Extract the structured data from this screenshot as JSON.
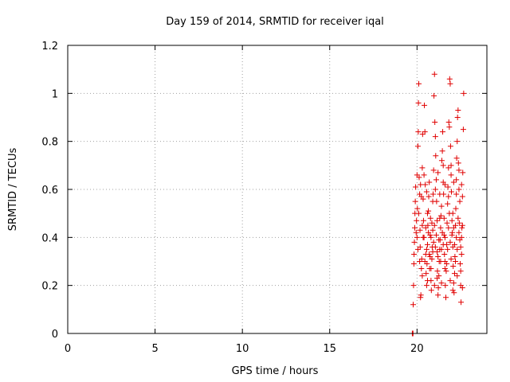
{
  "chart_data": {
    "type": "scatter",
    "title": "Day 159 of 2014, SRMTID for receiver iqal",
    "xlabel": "GPS time / hours",
    "ylabel": "SRMTID / TECUs",
    "xlim": [
      0,
      24
    ],
    "ylim": [
      0,
      1.2
    ],
    "xticks": [
      0,
      5,
      10,
      15,
      20
    ],
    "yticks": [
      0,
      0.2,
      0.4,
      0.6,
      0.8,
      1,
      1.2
    ],
    "xtick_labels": [
      "0",
      "5",
      "10",
      "15",
      "20"
    ],
    "ytick_labels": [
      "0",
      "0.2",
      "0.4",
      "0.6",
      "0.8",
      "1",
      "1.2"
    ],
    "grid": true,
    "marker": "+",
    "color": "#e00000",
    "series": [
      {
        "name": "SRMTID",
        "points": [
          [
            19.73,
            0.0
          ],
          [
            19.75,
            0.0
          ],
          [
            19.77,
            0.0
          ],
          [
            19.78,
            0.12
          ],
          [
            19.8,
            0.2
          ],
          [
            19.82,
            0.29
          ],
          [
            19.83,
            0.33
          ],
          [
            19.85,
            0.38
          ],
          [
            19.87,
            0.44
          ],
          [
            19.88,
            0.5
          ],
          [
            19.9,
            0.55
          ],
          [
            19.92,
            0.61
          ],
          [
            19.95,
            0.42
          ],
          [
            19.97,
            0.47
          ],
          [
            20.0,
            0.66
          ],
          [
            20.02,
            0.52
          ],
          [
            20.05,
            0.78
          ],
          [
            20.07,
            0.84
          ],
          [
            20.08,
            0.96
          ],
          [
            20.1,
            1.04
          ],
          [
            20.12,
            0.65
          ],
          [
            20.15,
            0.58
          ],
          [
            20.17,
            0.43
          ],
          [
            20.18,
            0.36
          ],
          [
            20.2,
            0.15
          ],
          [
            20.22,
            0.16
          ],
          [
            20.25,
            0.27
          ],
          [
            20.27,
            0.31
          ],
          [
            20.3,
            0.69
          ],
          [
            20.32,
            0.83
          ],
          [
            20.35,
            0.56
          ],
          [
            20.37,
            0.47
          ],
          [
            20.4,
            0.4
          ],
          [
            20.42,
            0.95
          ],
          [
            20.45,
            0.84
          ],
          [
            20.47,
            0.62
          ],
          [
            20.5,
            0.33
          ],
          [
            20.52,
            0.25
          ],
          [
            20.55,
            0.2
          ],
          [
            20.57,
            0.29
          ],
          [
            20.6,
            0.37
          ],
          [
            20.62,
            0.45
          ],
          [
            20.65,
            0.51
          ],
          [
            20.67,
            0.57
          ],
          [
            20.7,
            0.33
          ],
          [
            20.72,
            0.27
          ],
          [
            20.75,
            0.41
          ],
          [
            20.77,
            0.48
          ],
          [
            20.8,
            0.22
          ],
          [
            20.82,
            0.18
          ],
          [
            20.85,
            0.31
          ],
          [
            20.87,
            0.36
          ],
          [
            20.9,
            0.43
          ],
          [
            20.92,
            0.58
          ],
          [
            20.95,
            0.68
          ],
          [
            20.97,
            0.99
          ],
          [
            21.0,
            1.08
          ],
          [
            21.02,
            0.88
          ],
          [
            21.05,
            0.82
          ],
          [
            21.07,
            0.74
          ],
          [
            21.1,
            0.64
          ],
          [
            21.12,
            0.55
          ],
          [
            21.15,
            0.34
          ],
          [
            21.17,
            0.26
          ],
          [
            21.2,
            0.16
          ],
          [
            21.22,
            0.19
          ],
          [
            21.25,
            0.24
          ],
          [
            21.27,
            0.3
          ],
          [
            21.3,
            0.35
          ],
          [
            21.32,
            0.39
          ],
          [
            21.35,
            0.44
          ],
          [
            21.37,
            0.49
          ],
          [
            21.4,
            0.53
          ],
          [
            21.42,
            0.72
          ],
          [
            21.45,
            0.76
          ],
          [
            21.47,
            0.84
          ],
          [
            21.5,
            0.63
          ],
          [
            21.52,
            0.58
          ],
          [
            21.55,
            0.41
          ],
          [
            21.57,
            0.33
          ],
          [
            21.6,
            0.27
          ],
          [
            21.62,
            0.2
          ],
          [
            21.65,
            0.15
          ],
          [
            21.67,
            0.26
          ],
          [
            21.7,
            0.37
          ],
          [
            21.72,
            0.46
          ],
          [
            21.75,
            0.54
          ],
          [
            21.77,
            0.61
          ],
          [
            21.8,
            0.69
          ],
          [
            21.82,
            0.88
          ],
          [
            21.85,
            0.86
          ],
          [
            21.87,
            1.06
          ],
          [
            21.9,
            1.04
          ],
          [
            21.92,
            0.78
          ],
          [
            21.95,
            0.66
          ],
          [
            21.97,
            0.59
          ],
          [
            22.0,
            0.47
          ],
          [
            22.02,
            0.42
          ],
          [
            22.05,
            0.36
          ],
          [
            22.07,
            0.28
          ],
          [
            22.1,
            0.21
          ],
          [
            22.12,
            0.17
          ],
          [
            22.15,
            0.25
          ],
          [
            22.17,
            0.32
          ],
          [
            22.2,
            0.45
          ],
          [
            22.22,
            0.52
          ],
          [
            22.25,
            0.64
          ],
          [
            22.27,
            0.73
          ],
          [
            22.3,
            0.8
          ],
          [
            22.32,
            0.9
          ],
          [
            22.35,
            0.93
          ],
          [
            22.37,
            0.71
          ],
          [
            22.4,
            0.6
          ],
          [
            22.42,
            0.46
          ],
          [
            22.45,
            0.39
          ],
          [
            22.47,
            0.29
          ],
          [
            22.5,
            0.2
          ],
          [
            22.52,
            0.13
          ],
          [
            22.55,
            0.33
          ],
          [
            22.57,
            0.44
          ],
          [
            22.6,
            0.57
          ],
          [
            22.62,
            0.67
          ],
          [
            22.65,
            0.85
          ],
          [
            22.67,
            1.0
          ],
          [
            20.0,
            0.4
          ],
          [
            20.05,
            0.35
          ],
          [
            20.1,
            0.5
          ],
          [
            20.15,
            0.3
          ],
          [
            20.3,
            0.45
          ],
          [
            20.35,
            0.4
          ],
          [
            20.45,
            0.3
          ],
          [
            20.5,
            0.44
          ],
          [
            20.55,
            0.35
          ],
          [
            20.6,
            0.5
          ],
          [
            20.65,
            0.42
          ],
          [
            20.75,
            0.32
          ],
          [
            20.8,
            0.4
          ],
          [
            20.85,
            0.46
          ],
          [
            20.9,
            0.34
          ],
          [
            20.95,
            0.38
          ],
          [
            21.0,
            0.45
          ],
          [
            21.05,
            0.36
          ],
          [
            21.1,
            0.41
          ],
          [
            21.15,
            0.47
          ],
          [
            21.2,
            0.32
          ],
          [
            21.25,
            0.39
          ],
          [
            21.3,
            0.48
          ],
          [
            21.35,
            0.3
          ],
          [
            21.4,
            0.35
          ],
          [
            21.45,
            0.42
          ],
          [
            21.5,
            0.37
          ],
          [
            21.55,
            0.48
          ],
          [
            21.6,
            0.4
          ],
          [
            21.7,
            0.29
          ],
          [
            21.75,
            0.35
          ],
          [
            21.8,
            0.44
          ],
          [
            21.85,
            0.5
          ],
          [
            21.9,
            0.38
          ],
          [
            21.95,
            0.31
          ],
          [
            22.0,
            0.41
          ],
          [
            22.05,
            0.5
          ],
          [
            22.1,
            0.44
          ],
          [
            22.15,
            0.37
          ],
          [
            22.2,
            0.3
          ],
          [
            22.25,
            0.4
          ],
          [
            22.3,
            0.35
          ],
          [
            22.35,
            0.48
          ],
          [
            22.4,
            0.42
          ],
          [
            22.45,
            0.55
          ],
          [
            22.5,
            0.36
          ],
          [
            22.55,
            0.4
          ],
          [
            22.6,
            0.45
          ],
          [
            20.2,
            0.62
          ],
          [
            20.25,
            0.57
          ],
          [
            20.4,
            0.66
          ],
          [
            20.55,
            0.59
          ],
          [
            20.7,
            0.63
          ],
          [
            20.9,
            0.55
          ],
          [
            21.05,
            0.6
          ],
          [
            21.2,
            0.67
          ],
          [
            21.3,
            0.58
          ],
          [
            21.5,
            0.7
          ],
          [
            21.6,
            0.62
          ],
          [
            21.8,
            0.57
          ],
          [
            21.95,
            0.7
          ],
          [
            22.1,
            0.63
          ],
          [
            22.25,
            0.58
          ],
          [
            22.4,
            0.68
          ],
          [
            22.55,
            0.62
          ],
          [
            20.3,
            0.24
          ],
          [
            20.6,
            0.22
          ],
          [
            20.8,
            0.27
          ],
          [
            21.0,
            0.2
          ],
          [
            21.15,
            0.23
          ],
          [
            21.4,
            0.21
          ],
          [
            21.6,
            0.3
          ],
          [
            21.9,
            0.22
          ],
          [
            22.05,
            0.18
          ],
          [
            22.3,
            0.24
          ],
          [
            22.5,
            0.26
          ],
          [
            22.6,
            0.19
          ]
        ]
      }
    ]
  }
}
